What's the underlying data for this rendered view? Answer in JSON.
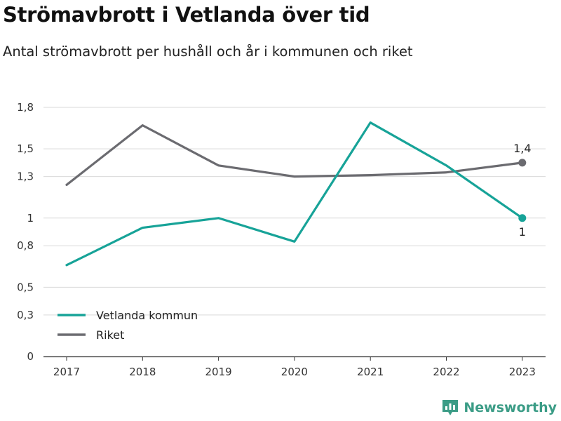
{
  "title": "Strömavbrott i Vetlanda över tid",
  "subtitle": "Antal strömavbrott per hushåll och år i kommunen och riket",
  "brand": {
    "name": "Newsworthy",
    "icon": "newsworthy-logo-icon",
    "color": "#3b9c86"
  },
  "colors": {
    "grid": "#d9d9d9",
    "axis": "#333333"
  },
  "chart_data": {
    "type": "line",
    "categories": [
      "2017",
      "2018",
      "2019",
      "2020",
      "2021",
      "2022",
      "2023"
    ],
    "series": [
      {
        "name": "Vetlanda kommun",
        "color": "#17a398",
        "values": [
          0.66,
          0.93,
          1.0,
          0.83,
          1.69,
          1.38,
          1.0
        ],
        "end_label": "1"
      },
      {
        "name": "Riket",
        "color": "#6b6b70",
        "values": [
          1.24,
          1.67,
          1.38,
          1.3,
          1.31,
          1.33,
          1.4
        ],
        "end_label": "1,4"
      }
    ],
    "y_ticks": [
      0,
      0.3,
      0.5,
      0.8,
      1,
      1.3,
      1.5,
      1.8
    ],
    "y_tick_labels": [
      "0",
      "0,3",
      "0,5",
      "0,8",
      "1",
      "1,3",
      "1,5",
      "1,8"
    ],
    "ylim": [
      0,
      1.8
    ],
    "grid": true,
    "legend": "bottom-left",
    "xlabel": "",
    "ylabel": ""
  }
}
